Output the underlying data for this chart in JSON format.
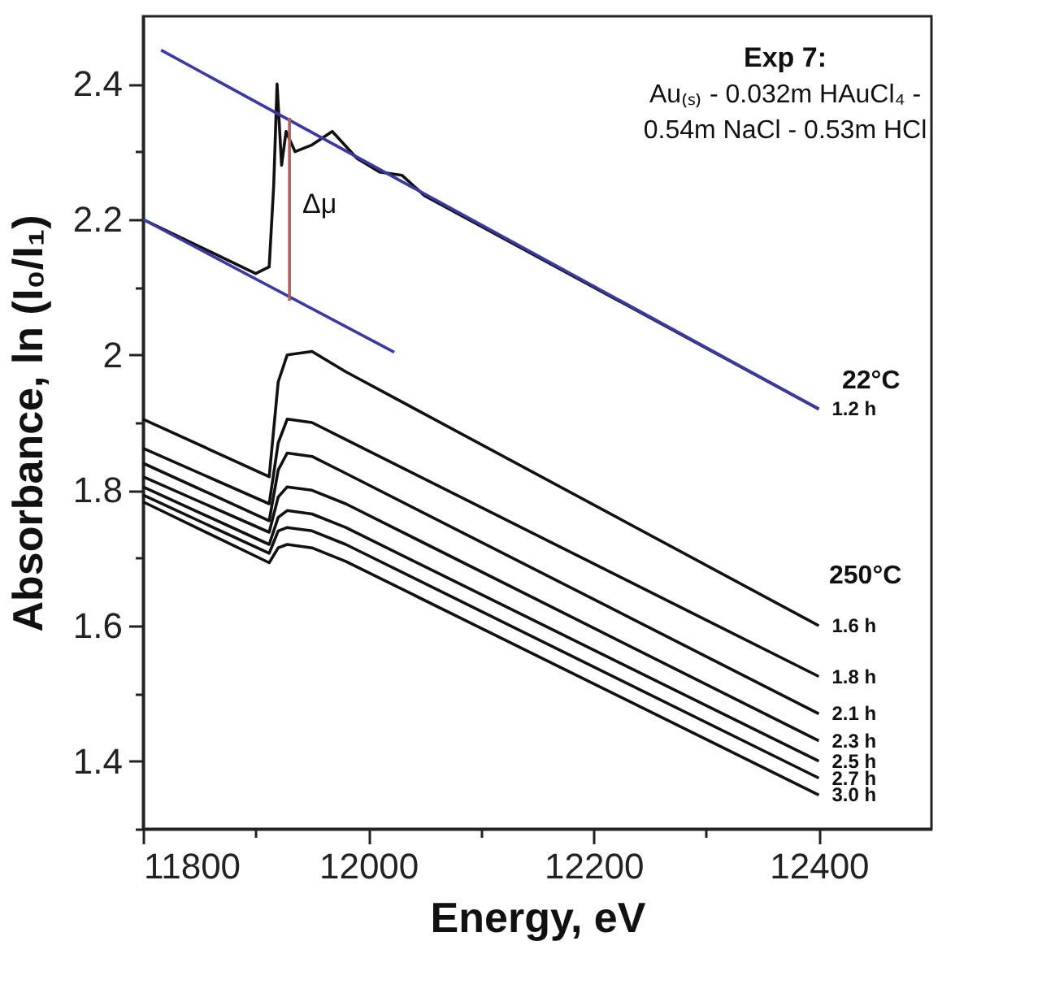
{
  "chart_data": {
    "type": "line",
    "xlabel": "Energy, eV",
    "ylabel": "Absorbance, ln (I₀/I₁)",
    "xlim": [
      11800,
      12500
    ],
    "ylim": [
      1.3,
      2.5
    ],
    "xticks": [
      11800,
      {
        "value": 11900,
        "label": null
      },
      12000,
      {
        "value": 12100,
        "label": null
      },
      12200,
      {
        "value": 12300,
        "label": null
      },
      12400
    ],
    "yticks": [
      {
        "value": 1.3,
        "label": null
      },
      1.4,
      {
        "value": 1.5,
        "label": null
      },
      1.6,
      {
        "value": 1.7,
        "label": null
      },
      1.8,
      {
        "value": 1.9,
        "label": null
      },
      2.0,
      {
        "value": 2.1,
        "label": null
      },
      2.2,
      {
        "value": 2.3,
        "label": null
      },
      2.4
    ],
    "series": [
      {
        "name": "1.2 h",
        "color": "#111111",
        "x": [
          11800,
          11900,
          11912,
          11916,
          11919,
          11923,
          11927,
          11935,
          11950,
          11968,
          11990,
          12010,
          12030,
          12050,
          12400
        ],
        "values": [
          2.2,
          2.12,
          2.13,
          2.25,
          2.4,
          2.28,
          2.33,
          2.3,
          2.31,
          2.33,
          2.29,
          2.27,
          2.265,
          2.235,
          1.92
        ]
      },
      {
        "color": "#3a3aa0",
        "x": [
          11816,
          12400
        ],
        "values": [
          2.45,
          1.92
        ]
      },
      {
        "color": "#3a3aa0",
        "x": [
          11800,
          12023
        ],
        "values": [
          2.2,
          2.004
        ]
      },
      {
        "color": "#b06060",
        "x": [
          11930,
          11930
        ],
        "values": [
          2.35,
          2.08
        ]
      },
      {
        "name": "1.6 h",
        "color": "#111111",
        "x": [
          11800,
          11912,
          11920,
          11928,
          11950,
          11980,
          12400
        ],
        "values": [
          1.905,
          1.82,
          1.96,
          2.0,
          2.005,
          1.975,
          1.6
        ]
      },
      {
        "name": "1.8 h",
        "color": "#111111",
        "x": [
          11800,
          11912,
          11920,
          11928,
          11950,
          11980,
          12400
        ],
        "values": [
          1.862,
          1.78,
          1.87,
          1.905,
          1.9,
          1.875,
          1.525
        ]
      },
      {
        "name": "2.1 h",
        "color": "#111111",
        "x": [
          11800,
          11912,
          11920,
          11928,
          11950,
          11980,
          12400
        ],
        "values": [
          1.84,
          1.755,
          1.83,
          1.855,
          1.85,
          1.825,
          1.47
        ]
      },
      {
        "name": "2.3 h",
        "color": "#111111",
        "x": [
          11800,
          11912,
          11920,
          11928,
          11950,
          11980,
          12400
        ],
        "values": [
          1.82,
          1.738,
          1.79,
          1.805,
          1.8,
          1.78,
          1.43
        ]
      },
      {
        "name": "2.5 h",
        "color": "#111111",
        "x": [
          11800,
          11912,
          11920,
          11928,
          11950,
          11980,
          12400
        ],
        "values": [
          1.805,
          1.72,
          1.76,
          1.77,
          1.765,
          1.745,
          1.4
        ]
      },
      {
        "name": "2.7 h",
        "color": "#111111",
        "x": [
          11800,
          11912,
          11920,
          11928,
          11950,
          11980,
          12400
        ],
        "values": [
          1.793,
          1.707,
          1.74,
          1.745,
          1.74,
          1.72,
          1.375
        ]
      },
      {
        "name": "3.0 h",
        "color": "#111111",
        "x": [
          11800,
          11912,
          11920,
          11928,
          11950,
          11980,
          12400
        ],
        "values": [
          1.783,
          1.693,
          1.715,
          1.72,
          1.715,
          1.695,
          1.35
        ]
      }
    ],
    "annotations": [
      "Exp 7:",
      "Au₍ₛ₎ - 0.032m HAuCl₄ -",
      "0.54m NaCl - 0.53m HCl",
      "Δμ",
      "22°C",
      "250°C"
    ]
  }
}
